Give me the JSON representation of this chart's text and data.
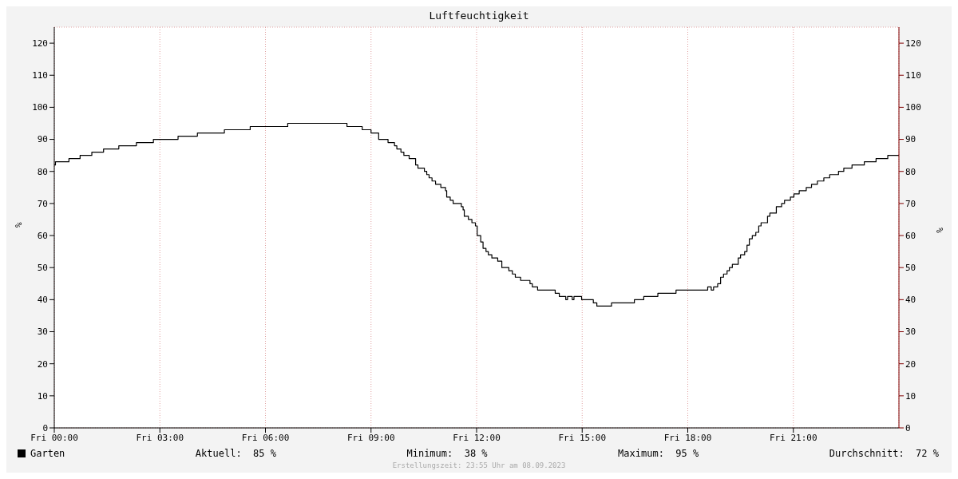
{
  "chart_data": {
    "type": "step",
    "title": "Luftfeuchtigkeit",
    "ylabel": "%",
    "y2label": "%",
    "x": [
      "2023-09-08T00:00",
      "2023-09-08T00:02",
      "2023-09-08T00:25",
      "2023-09-08T00:44",
      "2023-09-08T01:04",
      "2023-09-08T01:24",
      "2023-09-08T01:50",
      "2023-09-08T02:20",
      "2023-09-08T02:49",
      "2023-09-08T03:31",
      "2023-09-08T04:04",
      "2023-09-08T04:50",
      "2023-09-08T05:34",
      "2023-09-08T06:38",
      "2023-09-08T08:19",
      "2023-09-08T08:45",
      "2023-09-08T09:00",
      "2023-09-08T09:13",
      "2023-09-08T09:29",
      "2023-09-08T09:40",
      "2023-09-08T09:44",
      "2023-09-08T09:51",
      "2023-09-08T09:56",
      "2023-09-08T10:05",
      "2023-09-08T10:16",
      "2023-09-08T10:20",
      "2023-09-08T10:31",
      "2023-09-08T10:35",
      "2023-09-08T10:39",
      "2023-09-08T10:44",
      "2023-09-08T10:50",
      "2023-09-08T10:59",
      "2023-09-08T11:07",
      "2023-09-08T11:09",
      "2023-09-08T11:15",
      "2023-09-08T11:20",
      "2023-09-08T11:34",
      "2023-09-08T11:37",
      "2023-09-08T11:39",
      "2023-09-08T11:46",
      "2023-09-08T11:52",
      "2023-09-08T11:58",
      "2023-09-08T12:01",
      "2023-09-08T12:07",
      "2023-09-08T12:11",
      "2023-09-08T12:16",
      "2023-09-08T12:20",
      "2023-09-08T12:26",
      "2023-09-08T12:36",
      "2023-09-08T12:43",
      "2023-09-08T12:55",
      "2023-09-08T13:01",
      "2023-09-08T13:06",
      "2023-09-08T13:15",
      "2023-09-08T13:31",
      "2023-09-08T13:35",
      "2023-09-08T13:44",
      "2023-09-08T14:14",
      "2023-09-08T14:21",
      "2023-09-08T14:32",
      "2023-09-08T14:35",
      "2023-09-08T14:43",
      "2023-09-08T14:46",
      "2023-09-08T14:59",
      "2023-09-08T15:19",
      "2023-09-08T15:25",
      "2023-09-08T15:50",
      "2023-09-08T16:29",
      "2023-09-08T16:45",
      "2023-09-08T17:09",
      "2023-09-08T17:40",
      "2023-09-08T18:34",
      "2023-09-08T18:40",
      "2023-09-08T18:44",
      "2023-09-08T18:51",
      "2023-09-08T18:56",
      "2023-09-08T19:01",
      "2023-09-08T19:07",
      "2023-09-08T19:11",
      "2023-09-08T19:16",
      "2023-09-08T19:26",
      "2023-09-08T19:30",
      "2023-09-08T19:37",
      "2023-09-08T19:41",
      "2023-09-08T19:45",
      "2023-09-08T19:50",
      "2023-09-08T19:56",
      "2023-09-08T20:01",
      "2023-09-08T20:05",
      "2023-09-08T20:16",
      "2023-09-08T20:20",
      "2023-09-08T20:31",
      "2023-09-08T20:40",
      "2023-09-08T20:45",
      "2023-09-08T20:55",
      "2023-09-08T21:01",
      "2023-09-08T21:10",
      "2023-09-08T21:22",
      "2023-09-08T21:31",
      "2023-09-08T21:41",
      "2023-09-08T21:52",
      "2023-09-08T22:02",
      "2023-09-08T22:17",
      "2023-09-08T22:26",
      "2023-09-08T22:40",
      "2023-09-08T23:01",
      "2023-09-08T23:21",
      "2023-09-08T23:41",
      "2023-09-09T00:00"
    ],
    "series": [
      {
        "name": "Garten",
        "color": "#000000",
        "values": [
          82,
          83,
          84,
          85,
          86,
          87,
          88,
          89,
          90,
          91,
          92,
          93,
          94,
          95,
          94,
          93,
          92,
          90,
          89,
          88,
          87,
          86,
          85,
          84,
          82,
          81,
          80,
          79,
          78,
          77,
          76,
          75,
          74,
          72,
          71,
          70,
          69,
          68,
          66,
          65,
          64,
          63,
          60,
          58,
          56,
          55,
          54,
          53,
          52,
          50,
          49,
          48,
          47,
          46,
          45,
          44,
          43,
          42,
          41,
          40,
          41,
          40,
          41,
          40,
          39,
          38,
          39,
          40,
          41,
          42,
          43,
          44,
          43,
          44,
          45,
          47,
          48,
          49,
          50,
          51,
          53,
          54,
          55,
          57,
          59,
          60,
          61,
          63,
          64,
          66,
          67,
          69,
          70,
          71,
          72,
          73,
          74,
          75,
          76,
          77,
          78,
          79,
          80,
          81,
          82,
          83,
          84,
          85,
          85
        ]
      }
    ],
    "xlim": [
      "2023-09-08T00:00",
      "2023-09-09T00:00"
    ],
    "xticks": [
      {
        "value": "2023-09-08T00:00",
        "label": "Fri 00:00"
      },
      {
        "value": "2023-09-08T03:00",
        "label": "Fri 03:00"
      },
      {
        "value": "2023-09-08T06:00",
        "label": "Fri 06:00"
      },
      {
        "value": "2023-09-08T09:00",
        "label": "Fri 09:00"
      },
      {
        "value": "2023-09-08T12:00",
        "label": "Fri 12:00"
      },
      {
        "value": "2023-09-08T15:00",
        "label": "Fri 15:00"
      },
      {
        "value": "2023-09-08T18:00",
        "label": "Fri 18:00"
      },
      {
        "value": "2023-09-08T21:00",
        "label": "Fri 21:00"
      }
    ],
    "ylim": [
      0,
      125
    ],
    "yticks": [
      0,
      10,
      20,
      30,
      40,
      50,
      60,
      70,
      80,
      90,
      100,
      110,
      120
    ],
    "y2lim": [
      0,
      125
    ],
    "y2ticks": [
      0,
      10,
      20,
      30,
      40,
      50,
      60,
      70,
      80,
      90,
      100,
      110,
      120
    ],
    "grid": true,
    "legend": "bottom left",
    "marker": "none",
    "line_style": "solid",
    "annotations": [
      "Aktuell:  85 %",
      "Minimum:  38 %",
      "Maximum:  95 %",
      "Durchschnitt:  72 %",
      "Erstellungszeit: 23:55 Uhr am 08.09.2023"
    ]
  }
}
